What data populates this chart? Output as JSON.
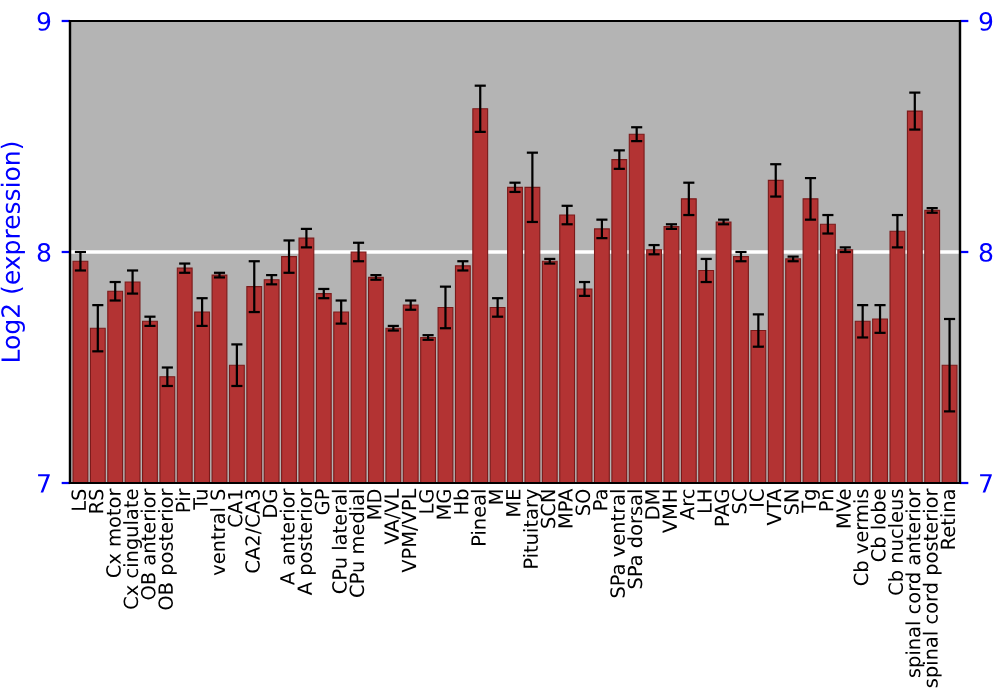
{
  "chart_data": {
    "type": "bar",
    "ylabel": "Log2 (expression)",
    "categories": [
      "LS",
      "RS",
      "Cx motor",
      "Cx cingulate",
      "OB anterior",
      "OB posterior",
      "Pir",
      "Tu",
      "ventral S",
      "CA1",
      "CA2/CA3",
      "DG",
      "A anterior",
      "A posterior",
      "GP",
      "CPu lateral",
      "CPu medial",
      "MD",
      "VA/VL",
      "VPM/VPL",
      "LG",
      "MG",
      "Hb",
      "Pineal",
      "M",
      "ME",
      "Pituitary",
      "SCN",
      "MPA",
      "SO",
      "Pa",
      "SPa ventral",
      "SPa dorsal",
      "DM",
      "VMH",
      "Arc",
      "LH",
      "PAG",
      "SC",
      "IC",
      "VTA",
      "SN",
      "Tg",
      "Pn",
      "MVe",
      "Cb vermis",
      "Cb lobe",
      "Cb nucleus",
      "spinal cord anterior",
      "spinal cord posterior",
      "Retina"
    ],
    "values": [
      7.96,
      7.67,
      7.83,
      7.87,
      7.7,
      7.46,
      7.93,
      7.74,
      7.9,
      7.51,
      7.85,
      7.88,
      7.98,
      8.06,
      7.82,
      7.74,
      8.0,
      7.89,
      7.67,
      7.77,
      7.63,
      7.76,
      7.94,
      8.62,
      7.76,
      8.28,
      8.28,
      7.96,
      8.16,
      7.84,
      8.1,
      8.4,
      8.51,
      8.01,
      8.11,
      8.23,
      7.92,
      8.13,
      7.98,
      7.66,
      8.31,
      7.97,
      8.23,
      8.12,
      8.01,
      7.7,
      7.71,
      8.09,
      8.61,
      8.18,
      7.51
    ],
    "errors": [
      0.04,
      0.1,
      0.04,
      0.05,
      0.02,
      0.04,
      0.02,
      0.06,
      0.01,
      0.09,
      0.11,
      0.02,
      0.07,
      0.04,
      0.02,
      0.05,
      0.04,
      0.01,
      0.01,
      0.02,
      0.01,
      0.09,
      0.02,
      0.1,
      0.04,
      0.02,
      0.15,
      0.01,
      0.04,
      0.03,
      0.04,
      0.04,
      0.03,
      0.02,
      0.01,
      0.07,
      0.05,
      0.01,
      0.02,
      0.07,
      0.07,
      0.01,
      0.09,
      0.04,
      0.01,
      0.07,
      0.06,
      0.07,
      0.08,
      0.01,
      0.2
    ],
    "color": "#b33333",
    "ylim": [
      7,
      9
    ],
    "yticks": [
      7,
      8,
      9
    ],
    "y2lim": [
      7,
      9
    ],
    "y2ticks": [
      7,
      8,
      9
    ],
    "ref_lines": [
      {
        "axis": "y",
        "value": 8,
        "color": "#ffffff"
      }
    ]
  }
}
